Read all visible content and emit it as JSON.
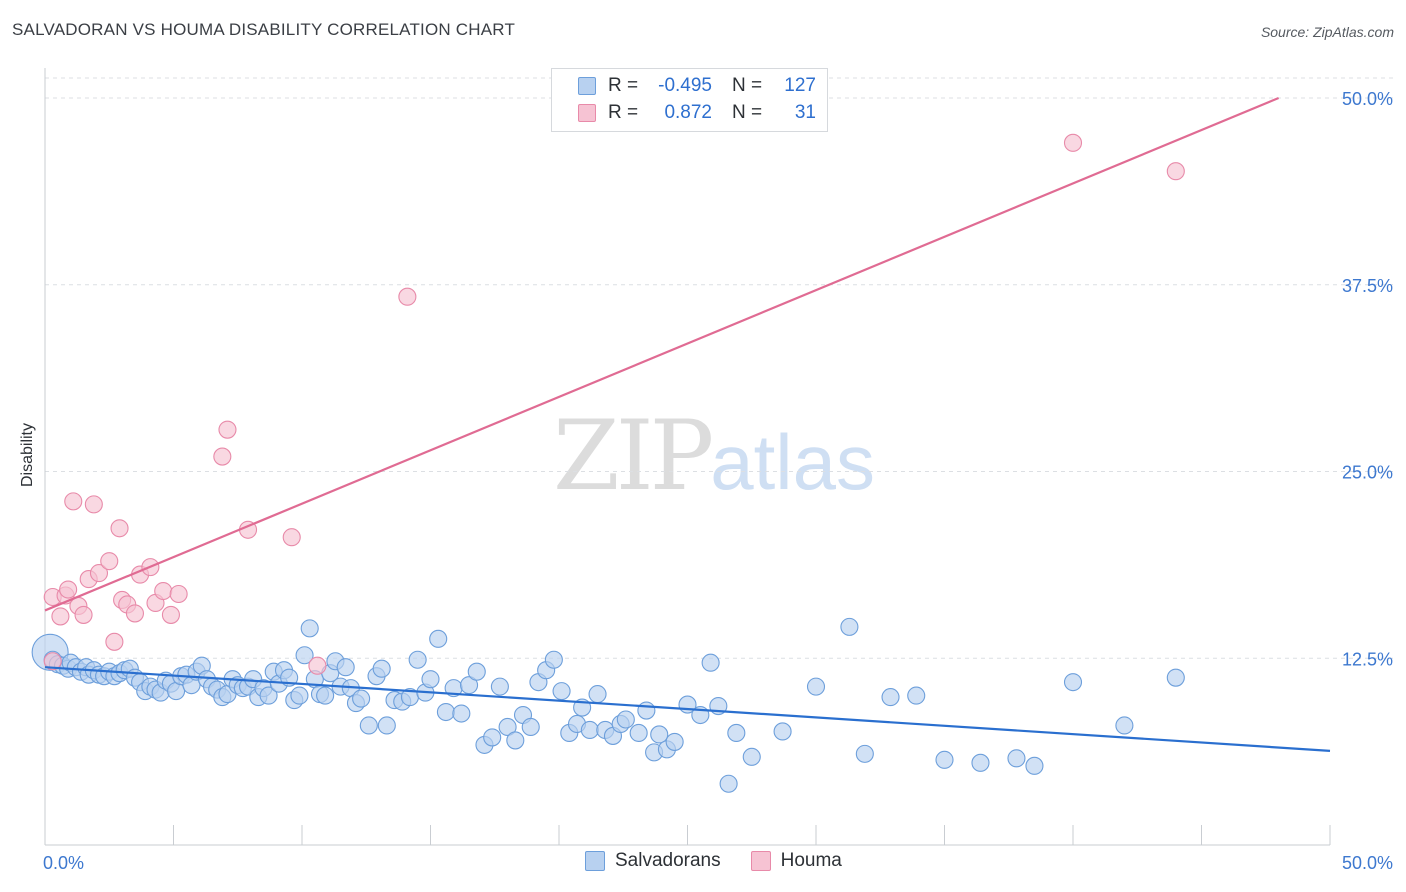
{
  "header": {
    "title": "SALVADORAN VS HOUMA DISABILITY CORRELATION CHART",
    "source": "Source: ZipAtlas.com"
  },
  "watermark": {
    "zip": "ZIP",
    "atlas": "atlas"
  },
  "legend": {
    "rows": [
      {
        "r_label": "R =",
        "r_value": "-0.495",
        "n_label": "N =",
        "n_value": "127"
      },
      {
        "r_label": "R =",
        "r_value": "0.872",
        "n_label": "N =",
        "n_value": "31"
      }
    ]
  },
  "colors": {
    "blue_fill": "#b8d1f0",
    "blue_stroke": "#6d9fdb",
    "blue_line": "#2a6fcf",
    "pink_fill": "#f6c3d3",
    "pink_stroke": "#e88aa9",
    "pink_line": "#e06b93",
    "tick_label": "#3d78cf",
    "grid": "#dcdfe3"
  },
  "chart_data": {
    "type": "scatter",
    "title": "SALVADORAN VS HOUMA DISABILITY CORRELATION CHART",
    "xlabel": "",
    "ylabel": "Disability",
    "xlim": [
      0,
      50
    ],
    "ylim": [
      0,
      50
    ],
    "x_tick_labels": [
      "0.0%",
      "50.0%"
    ],
    "y_ticks": [
      12.5,
      25.0,
      37.5,
      50.0
    ],
    "y_tick_labels": [
      "12.5%",
      "25.0%",
      "37.5%",
      "50.0%"
    ],
    "grid": true,
    "legend_position": "top-center",
    "series": [
      {
        "name": "Salvadorans",
        "r": -0.495,
        "n": 127,
        "trend": {
          "x": [
            0,
            50
          ],
          "y": [
            11.9,
            6.3
          ]
        },
        "points": [
          [
            0.2,
            12.9
          ],
          [
            0.3,
            12.4
          ],
          [
            0.5,
            12.1
          ],
          [
            0.7,
            12.0
          ],
          [
            0.9,
            11.8
          ],
          [
            1.0,
            12.2
          ],
          [
            1.2,
            11.9
          ],
          [
            1.4,
            11.6
          ],
          [
            1.6,
            11.9
          ],
          [
            1.7,
            11.4
          ],
          [
            1.9,
            11.7
          ],
          [
            2.1,
            11.4
          ],
          [
            2.3,
            11.3
          ],
          [
            2.5,
            11.6
          ],
          [
            2.7,
            11.3
          ],
          [
            2.9,
            11.5
          ],
          [
            3.1,
            11.7
          ],
          [
            3.3,
            11.8
          ],
          [
            3.5,
            11.2
          ],
          [
            3.7,
            10.9
          ],
          [
            3.9,
            10.3
          ],
          [
            4.1,
            10.6
          ],
          [
            4.3,
            10.4
          ],
          [
            4.5,
            10.2
          ],
          [
            4.7,
            11.0
          ],
          [
            4.9,
            10.8
          ],
          [
            5.1,
            10.3
          ],
          [
            5.3,
            11.3
          ],
          [
            5.5,
            11.4
          ],
          [
            5.7,
            10.7
          ],
          [
            5.9,
            11.6
          ],
          [
            6.1,
            12.0
          ],
          [
            6.3,
            11.1
          ],
          [
            6.5,
            10.6
          ],
          [
            6.7,
            10.4
          ],
          [
            6.9,
            9.9
          ],
          [
            7.1,
            10.1
          ],
          [
            7.3,
            11.1
          ],
          [
            7.5,
            10.7
          ],
          [
            7.7,
            10.5
          ],
          [
            7.9,
            10.6
          ],
          [
            8.1,
            11.1
          ],
          [
            8.3,
            9.9
          ],
          [
            8.5,
            10.5
          ],
          [
            8.7,
            10.0
          ],
          [
            8.9,
            11.6
          ],
          [
            9.1,
            10.8
          ],
          [
            9.3,
            11.7
          ],
          [
            9.5,
            11.2
          ],
          [
            9.7,
            9.7
          ],
          [
            9.9,
            10.0
          ],
          [
            10.1,
            12.7
          ],
          [
            10.3,
            14.5
          ],
          [
            10.5,
            11.1
          ],
          [
            10.7,
            10.1
          ],
          [
            10.9,
            10.0
          ],
          [
            11.1,
            11.5
          ],
          [
            11.3,
            12.3
          ],
          [
            11.5,
            10.6
          ],
          [
            11.7,
            11.9
          ],
          [
            11.9,
            10.5
          ],
          [
            12.1,
            9.5
          ],
          [
            12.3,
            9.8
          ],
          [
            12.6,
            8.0
          ],
          [
            12.9,
            11.3
          ],
          [
            13.1,
            11.8
          ],
          [
            13.3,
            8.0
          ],
          [
            13.6,
            9.7
          ],
          [
            13.9,
            9.6
          ],
          [
            14.2,
            9.9
          ],
          [
            14.5,
            12.4
          ],
          [
            14.8,
            10.2
          ],
          [
            15.0,
            11.1
          ],
          [
            15.3,
            13.8
          ],
          [
            15.6,
            8.9
          ],
          [
            15.9,
            10.5
          ],
          [
            16.2,
            8.8
          ],
          [
            16.5,
            10.7
          ],
          [
            16.8,
            11.6
          ],
          [
            17.1,
            6.7
          ],
          [
            17.4,
            7.2
          ],
          [
            17.7,
            10.6
          ],
          [
            18.0,
            7.9
          ],
          [
            18.3,
            7.0
          ],
          [
            18.6,
            8.7
          ],
          [
            18.9,
            7.9
          ],
          [
            19.2,
            10.9
          ],
          [
            19.5,
            11.7
          ],
          [
            19.8,
            12.4
          ],
          [
            20.1,
            10.3
          ],
          [
            20.4,
            7.5
          ],
          [
            20.7,
            8.1
          ],
          [
            20.9,
            9.2
          ],
          [
            21.2,
            7.7
          ],
          [
            21.5,
            10.1
          ],
          [
            21.8,
            7.7
          ],
          [
            22.1,
            7.3
          ],
          [
            22.4,
            8.1
          ],
          [
            22.6,
            8.4
          ],
          [
            23.1,
            7.5
          ],
          [
            23.4,
            9.0
          ],
          [
            23.7,
            6.2
          ],
          [
            23.9,
            7.4
          ],
          [
            24.2,
            6.4
          ],
          [
            24.5,
            6.9
          ],
          [
            25.0,
            9.4
          ],
          [
            25.5,
            8.7
          ],
          [
            25.9,
            12.2
          ],
          [
            26.2,
            9.3
          ],
          [
            26.6,
            4.1
          ],
          [
            26.9,
            7.5
          ],
          [
            27.5,
            5.9
          ],
          [
            28.7,
            7.6
          ],
          [
            30.0,
            10.6
          ],
          [
            31.3,
            14.6
          ],
          [
            31.9,
            6.1
          ],
          [
            32.9,
            9.9
          ],
          [
            33.9,
            10.0
          ],
          [
            35.0,
            5.7
          ],
          [
            36.4,
            5.5
          ],
          [
            37.8,
            5.8
          ],
          [
            38.5,
            5.3
          ],
          [
            40.0,
            10.9
          ],
          [
            42.0,
            8.0
          ],
          [
            44.0,
            11.2
          ]
        ]
      },
      {
        "name": "Houma",
        "r": 0.872,
        "n": 31,
        "trend": {
          "x": [
            0,
            48
          ],
          "y": [
            15.7,
            50.0
          ]
        },
        "points": [
          [
            0.3,
            12.3
          ],
          [
            0.3,
            16.6
          ],
          [
            0.6,
            15.3
          ],
          [
            0.8,
            16.7
          ],
          [
            0.9,
            17.1
          ],
          [
            1.1,
            23.0
          ],
          [
            1.3,
            16.0
          ],
          [
            1.5,
            15.4
          ],
          [
            1.7,
            17.8
          ],
          [
            1.9,
            22.8
          ],
          [
            2.1,
            18.2
          ],
          [
            2.5,
            19.0
          ],
          [
            2.7,
            13.6
          ],
          [
            2.9,
            21.2
          ],
          [
            3.0,
            16.4
          ],
          [
            3.2,
            16.1
          ],
          [
            3.5,
            15.5
          ],
          [
            3.7,
            18.1
          ],
          [
            4.1,
            18.6
          ],
          [
            4.3,
            16.2
          ],
          [
            4.6,
            17.0
          ],
          [
            4.9,
            15.4
          ],
          [
            5.2,
            16.8
          ],
          [
            6.9,
            26.0
          ],
          [
            7.1,
            27.8
          ],
          [
            7.9,
            21.1
          ],
          [
            9.6,
            20.6
          ],
          [
            10.6,
            12.0
          ],
          [
            14.1,
            36.7
          ],
          [
            40.0,
            47.0
          ],
          [
            44.0,
            45.1
          ]
        ]
      }
    ]
  },
  "bottom_legend": {
    "items": [
      {
        "label": "Salvadorans"
      },
      {
        "label": "Houma"
      }
    ]
  }
}
